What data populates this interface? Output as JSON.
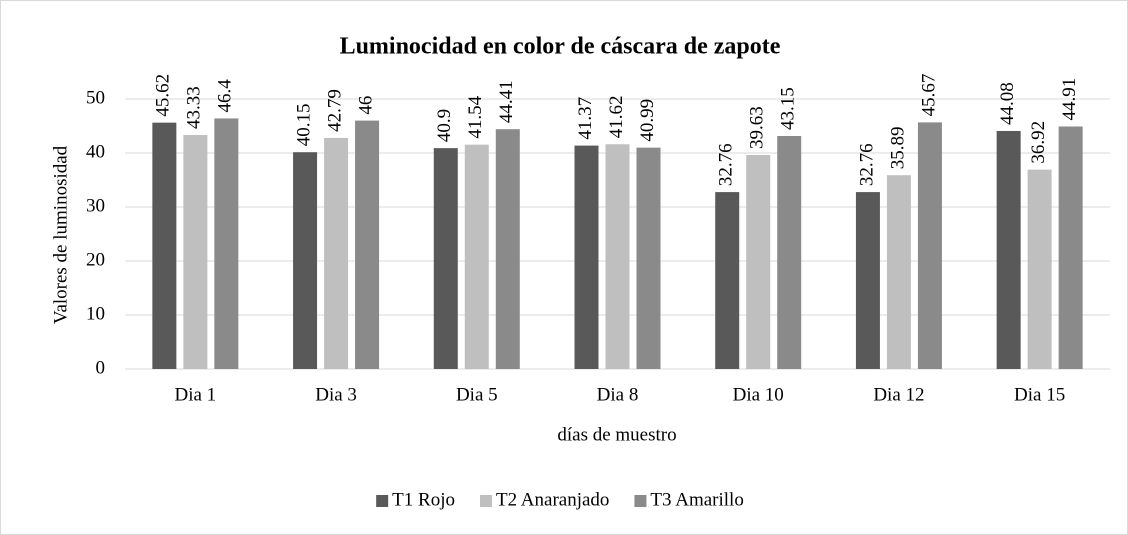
{
  "chart_data": {
    "type": "bar",
    "title": "Luminocidad en color de cáscara de zapote",
    "x_label": "días de muestro",
    "y_label": "Valores de luminosidad",
    "categories": [
      "Dia 1",
      "Dia 3",
      "Dia 5",
      "Dia 8",
      "Dia 10",
      "Dia 12",
      "Dia 15"
    ],
    "series": [
      {
        "name": "T1 Rojo",
        "color": "#595959",
        "values": [
          45.62,
          40.15,
          40.9,
          41.37,
          32.76,
          32.76,
          44.08
        ]
      },
      {
        "name": "T2 Anaranjado",
        "color": "#bfbfbf",
        "values": [
          43.33,
          42.79,
          41.54,
          41.62,
          39.63,
          35.89,
          36.92
        ]
      },
      {
        "name": "T3 Amarillo",
        "color": "#8a8a8a",
        "values": [
          46.4,
          46,
          44.41,
          40.99,
          43.15,
          45.67,
          44.91
        ]
      }
    ],
    "ylim": [
      0,
      50
    ],
    "yticks": [
      0,
      10,
      20,
      30,
      40,
      50
    ],
    "grid": true,
    "legend": "bottom"
  }
}
